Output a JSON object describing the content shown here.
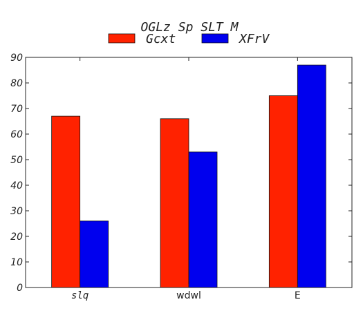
{
  "chart_data": {
    "type": "bar",
    "title": "OGLz Sp SLT M",
    "categories": [
      "slq",
      "wdwl",
      "E"
    ],
    "series": [
      {
        "name": "Gcxt",
        "values": [
          67,
          66,
          75
        ],
        "color": "#ff2200"
      },
      {
        "name": "XFrV",
        "values": [
          26,
          53,
          87
        ],
        "color": "#0000ee"
      }
    ],
    "xlabel": "",
    "ylabel": "",
    "ylim": [
      0,
      90
    ],
    "yticks": [
      0,
      10,
      20,
      30,
      40,
      50,
      60,
      70,
      80,
      90
    ],
    "grid": false,
    "legend": "top-center"
  }
}
